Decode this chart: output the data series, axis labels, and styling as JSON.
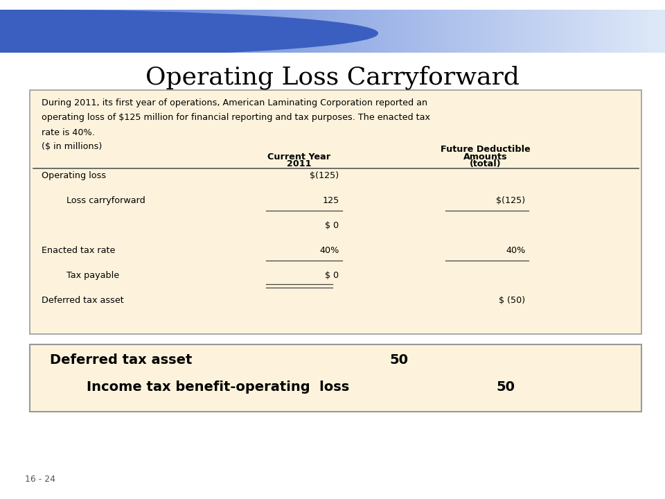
{
  "title": "Operating Loss Carryforward",
  "title_fontsize": 26,
  "background_body": "#ffffff",
  "table_bg": "#fdf3dc",
  "box2_bg": "#fdf3dc",
  "slide_number": "16 - 24",
  "intro_text_line1": "During 2011, its first year of operations, American Laminating Corporation reported an",
  "intro_text_line2": "operating loss of $125 million for financial reporting and tax purposes. The enacted tax",
  "intro_text_line3": "rate is 40%.",
  "subheader": "($ in millions)",
  "col1_header_line1": "Current Year",
  "col1_header_line2": "2011",
  "col2_header_line1": "Future Deductible",
  "col2_header_line2": "Amounts",
  "col2_header_line3": "(total)",
  "header_bar_color_left": "#4a6fd4",
  "header_bar_color_right": "#dde8f8",
  "circle_color": "#3a5fc0"
}
